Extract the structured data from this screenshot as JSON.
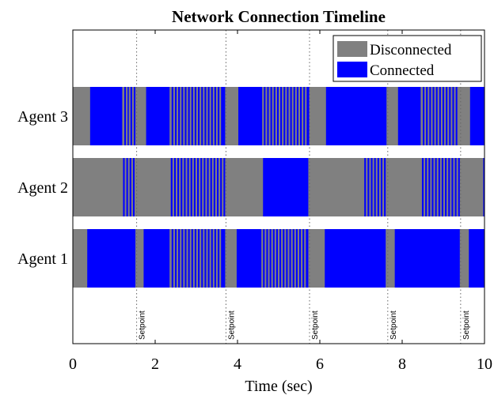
{
  "chart_data": {
    "type": "timeline",
    "title": "Network Connection Timeline",
    "xlabel": "Time (sec)",
    "xlim": [
      0,
      10
    ],
    "xticks": [
      0,
      2,
      4,
      6,
      8,
      10
    ],
    "grid": false,
    "legend_placement": "top-right",
    "legend": [
      {
        "key": "disconnected",
        "label": "Disconnected",
        "color": "#808080"
      },
      {
        "key": "connected",
        "label": "Connected",
        "color": "#0000ff"
      }
    ],
    "setpoints": {
      "label": "Setpoint",
      "times": [
        1.55,
        3.72,
        5.75,
        7.65,
        9.42
      ]
    },
    "agents": [
      {
        "name": "Agent 3",
        "connected": [
          [
            0.42,
            1.2
          ],
          [
            1.25,
            1.29
          ],
          [
            1.33,
            1.36
          ],
          [
            1.4,
            1.44
          ],
          [
            1.48,
            1.52
          ],
          [
            1.78,
            2.35
          ],
          [
            2.4,
            2.44
          ],
          [
            2.48,
            2.52
          ],
          [
            2.56,
            2.6
          ],
          [
            2.64,
            2.68
          ],
          [
            2.72,
            2.76
          ],
          [
            2.8,
            2.84
          ],
          [
            2.88,
            2.92
          ],
          [
            2.96,
            3.0
          ],
          [
            3.04,
            3.08
          ],
          [
            3.12,
            3.16
          ],
          [
            3.2,
            3.24
          ],
          [
            3.28,
            3.32
          ],
          [
            3.36,
            3.4
          ],
          [
            3.44,
            3.48
          ],
          [
            3.52,
            3.56
          ],
          [
            3.6,
            3.7
          ],
          [
            4.02,
            4.6
          ],
          [
            4.64,
            4.68
          ],
          [
            4.72,
            4.76
          ],
          [
            4.8,
            4.84
          ],
          [
            4.88,
            4.92
          ],
          [
            4.96,
            5.0
          ],
          [
            5.04,
            5.08
          ],
          [
            5.12,
            5.16
          ],
          [
            5.2,
            5.24
          ],
          [
            5.28,
            5.32
          ],
          [
            5.36,
            5.4
          ],
          [
            5.44,
            5.48
          ],
          [
            5.52,
            5.56
          ],
          [
            5.6,
            5.64
          ],
          [
            5.68,
            5.74
          ],
          [
            6.15,
            7.62
          ],
          [
            7.9,
            8.45
          ],
          [
            8.5,
            8.54
          ],
          [
            8.58,
            8.62
          ],
          [
            8.66,
            8.7
          ],
          [
            8.74,
            8.78
          ],
          [
            8.82,
            8.86
          ],
          [
            8.9,
            8.94
          ],
          [
            8.98,
            9.02
          ],
          [
            9.06,
            9.1
          ],
          [
            9.14,
            9.18
          ],
          [
            9.22,
            9.26
          ],
          [
            9.3,
            9.34
          ],
          [
            9.65,
            10.0
          ]
        ]
      },
      {
        "name": "Agent 2",
        "connected": [
          [
            1.22,
            1.26
          ],
          [
            1.3,
            1.34
          ],
          [
            1.38,
            1.42
          ],
          [
            1.46,
            1.5
          ],
          [
            2.38,
            2.42
          ],
          [
            2.46,
            2.5
          ],
          [
            2.54,
            2.58
          ],
          [
            2.62,
            2.66
          ],
          [
            2.7,
            2.74
          ],
          [
            2.78,
            2.82
          ],
          [
            2.86,
            2.9
          ],
          [
            2.94,
            2.98
          ],
          [
            3.02,
            3.06
          ],
          [
            3.1,
            3.14
          ],
          [
            3.18,
            3.22
          ],
          [
            3.26,
            3.3
          ],
          [
            3.34,
            3.38
          ],
          [
            3.42,
            3.46
          ],
          [
            3.5,
            3.54
          ],
          [
            3.58,
            3.62
          ],
          [
            3.66,
            3.7
          ],
          [
            4.62,
            5.72
          ],
          [
            7.08,
            7.12
          ],
          [
            7.16,
            7.2
          ],
          [
            7.24,
            7.28
          ],
          [
            7.32,
            7.36
          ],
          [
            7.4,
            7.44
          ],
          [
            7.48,
            7.52
          ],
          [
            7.56,
            7.6
          ],
          [
            8.48,
            8.52
          ],
          [
            8.56,
            8.6
          ],
          [
            8.64,
            8.68
          ],
          [
            8.72,
            8.76
          ],
          [
            8.8,
            8.84
          ],
          [
            8.88,
            8.92
          ],
          [
            8.96,
            9.0
          ],
          [
            9.04,
            9.08
          ],
          [
            9.12,
            9.16
          ],
          [
            9.2,
            9.24
          ],
          [
            9.28,
            9.32
          ],
          [
            9.36,
            9.4
          ],
          [
            9.97,
            10.0
          ]
        ]
      },
      {
        "name": "Agent 1",
        "connected": [
          [
            0.35,
            1.52
          ],
          [
            1.72,
            2.35
          ],
          [
            2.4,
            2.44
          ],
          [
            2.48,
            2.52
          ],
          [
            2.56,
            2.6
          ],
          [
            2.64,
            2.68
          ],
          [
            2.72,
            2.76
          ],
          [
            2.8,
            2.84
          ],
          [
            2.88,
            2.92
          ],
          [
            2.96,
            3.0
          ],
          [
            3.04,
            3.08
          ],
          [
            3.12,
            3.16
          ],
          [
            3.2,
            3.24
          ],
          [
            3.28,
            3.32
          ],
          [
            3.36,
            3.4
          ],
          [
            3.44,
            3.48
          ],
          [
            3.52,
            3.56
          ],
          [
            3.6,
            3.7
          ],
          [
            3.98,
            4.58
          ],
          [
            4.62,
            4.66
          ],
          [
            4.7,
            4.74
          ],
          [
            4.78,
            4.82
          ],
          [
            4.86,
            4.9
          ],
          [
            4.94,
            4.98
          ],
          [
            5.02,
            5.06
          ],
          [
            5.1,
            5.14
          ],
          [
            5.18,
            5.22
          ],
          [
            5.26,
            5.3
          ],
          [
            5.34,
            5.38
          ],
          [
            5.42,
            5.46
          ],
          [
            5.5,
            5.54
          ],
          [
            5.58,
            5.62
          ],
          [
            5.66,
            5.72
          ],
          [
            6.12,
            7.6
          ],
          [
            7.82,
            9.4
          ],
          [
            9.62,
            10.0
          ]
        ]
      }
    ]
  }
}
